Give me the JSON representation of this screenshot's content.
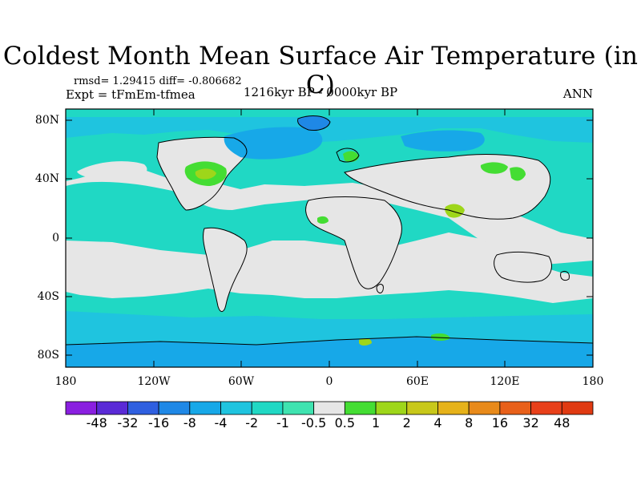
{
  "title": "Coldest Month Mean Surface Air Temperature (in C)",
  "stats": "rmsd= 1.29415 diff= -0.806682",
  "expt": "Expt = tFmEm-tfmea",
  "period": "1216kyr BP - 0000kyr BP",
  "season": "ANN",
  "y_ticks": [
    "80N",
    "40N",
    "0",
    "40S",
    "80S"
  ],
  "x_ticks": [
    "180",
    "120W",
    "60W",
    "0",
    "60E",
    "120E",
    "180"
  ],
  "colorbar": {
    "labels": [
      "-48",
      "-32",
      "-16",
      "-8",
      "-4",
      "-2",
      "-1",
      "-0.5",
      "0.5",
      "1",
      "2",
      "4",
      "8",
      "16",
      "32",
      "48"
    ],
    "colors": [
      "#8a1fe0",
      "#5a2ad6",
      "#2f5fe0",
      "#1f88e6",
      "#17a8e8",
      "#1fc4df",
      "#20d8c4",
      "#3fe3b0",
      "#e6e6e6",
      "#44dd33",
      "#9ed61a",
      "#c8c81a",
      "#e6b21a",
      "#e88a1a",
      "#e8601a",
      "#e8401a",
      "#e03a12"
    ]
  },
  "colors": {
    "ocean_background": "#20d8c4",
    "land_neutral": "#e6e6e6",
    "cool_light": "#1fc4df",
    "cool_mid": "#17a8e8",
    "cool_deep": "#1f88e6",
    "warm_light": "#44dd33",
    "warm_mid": "#9ed61a",
    "coastline": "#000000"
  }
}
